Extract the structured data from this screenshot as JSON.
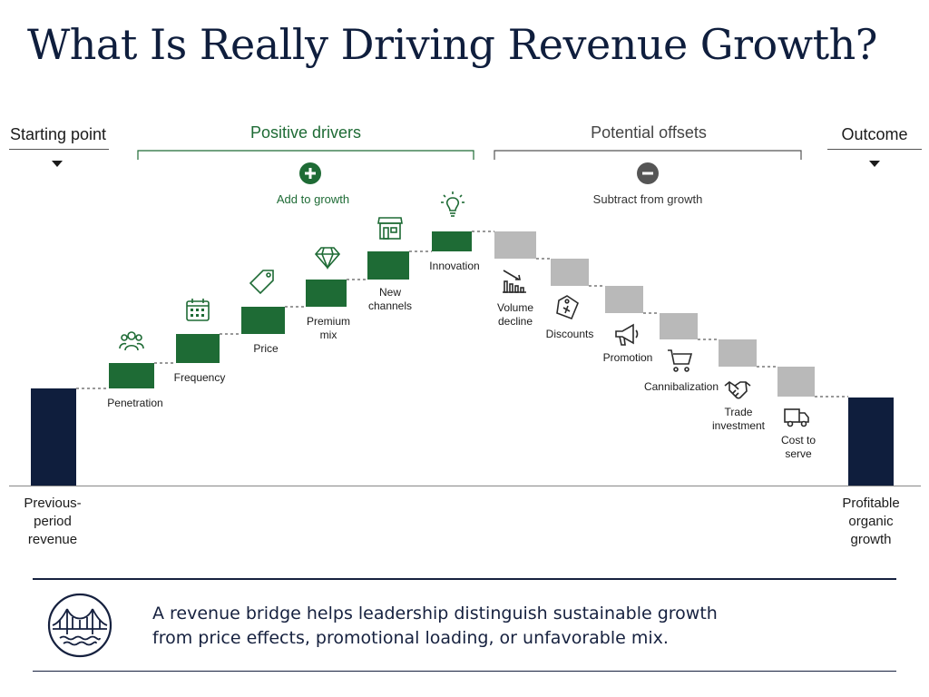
{
  "title": "What Is Really Driving Revenue Growth?",
  "headers": {
    "starting_point": "Starting point",
    "positive_drivers": "Positive drivers",
    "potential_offsets": "Potential offsets",
    "outcome": "Outcome"
  },
  "add_to_growth": "Add to growth",
  "subtract_from_growth": "Subtract from growth",
  "start_bar_label": "Previous-\nperiod\nrevenue",
  "end_bar_label": "Profitable\norganic\ngrowth",
  "positive_steps": [
    {
      "label": "Penetration",
      "icon": "people-icon"
    },
    {
      "label": "Frequency",
      "icon": "calendar-icon"
    },
    {
      "label": "Price",
      "icon": "price-tag-icon"
    },
    {
      "label": "Premium\nmix",
      "icon": "diamond-icon"
    },
    {
      "label": "New\nchannels",
      "icon": "storefront-icon"
    },
    {
      "label": "Innovation",
      "icon": "lightbulb-icon"
    }
  ],
  "negative_steps": [
    {
      "label": "Volume\ndecline",
      "icon": "declining-chart-icon"
    },
    {
      "label": "Discounts",
      "icon": "discount-tag-icon"
    },
    {
      "label": "Promotion",
      "icon": "megaphone-icon"
    },
    {
      "label": "Cannibalization",
      "icon": "shopping-cart-icon"
    },
    {
      "label": "Trade\ninvestment",
      "icon": "handshake-icon"
    },
    {
      "label": "Cost to\nserve",
      "icon": "truck-icon"
    }
  ],
  "footer": {
    "line1": "A revenue bridge helps leadership distinguish sustainable growth",
    "line2": "from price effects, promotional loading, or unfavorable mix.",
    "icon": "bridge-icon"
  },
  "colors": {
    "navy": "#0f1e3d",
    "green": "#1e6b35",
    "gray": "#b9b9b9"
  }
}
